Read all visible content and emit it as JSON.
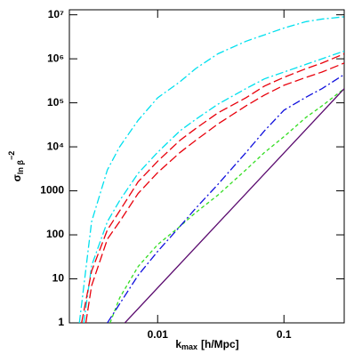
{
  "chart_data": {
    "type": "line",
    "log_x": true,
    "log_y": true,
    "xlim": [
      0.002,
      0.3
    ],
    "ylim": [
      1,
      13000000
    ],
    "xticks": [
      0.01,
      0.1
    ],
    "yticks": [
      1,
      10,
      100,
      1000,
      {
        "value": 10000,
        "label": "10⁴"
      },
      {
        "value": 100000,
        "label": "10⁵"
      },
      {
        "value": 1000000,
        "label": "10⁶"
      },
      {
        "value": 10000000,
        "label": "10⁷"
      }
    ],
    "x_label": {
      "symbol": "k",
      "sub": "max",
      "rest": "[h/Mpc]"
    },
    "y_label": {
      "symbol": "σ",
      "sub": "ln β",
      "sup": "−2"
    },
    "series": [
      {
        "color": "#00e0ee",
        "dash": "dash-dot",
        "x": [
          0.0024,
          0.003,
          0.004,
          0.005,
          0.007,
          0.01,
          0.015,
          0.02,
          0.03,
          0.05,
          0.07,
          0.1,
          0.15,
          0.2,
          0.3
        ],
        "values": [
          1,
          200,
          3000,
          10000,
          40000,
          130000,
          300000,
          600000,
          1300000,
          2500000,
          3500000,
          5000000,
          7000000,
          8000000,
          9000000
        ]
      },
      {
        "color": "#00e0ee",
        "dash": "dash-dot",
        "x": [
          0.0026,
          0.003,
          0.004,
          0.005,
          0.007,
          0.01,
          0.015,
          0.02,
          0.03,
          0.05,
          0.07,
          0.1,
          0.15,
          0.2,
          0.3
        ],
        "values": [
          1,
          20,
          200,
          600,
          2500,
          7500,
          23000,
          42000,
          93000,
          210000,
          350000,
          500000,
          750000,
          1000000,
          1500000
        ]
      },
      {
        "color": "#e8000b",
        "dash": "long-dashed",
        "x": [
          0.0025,
          0.003,
          0.004,
          0.005,
          0.007,
          0.01,
          0.015,
          0.02,
          0.03,
          0.05,
          0.07,
          0.1,
          0.15,
          0.2,
          0.3
        ],
        "values": [
          1,
          15,
          130,
          350,
          1600,
          4700,
          14000,
          26000,
          59000,
          130000,
          240000,
          380000,
          600000,
          800000,
          1300000
        ]
      },
      {
        "color": "#e8000b",
        "dash": "long-dashed",
        "x": [
          0.0027,
          0.003,
          0.004,
          0.005,
          0.007,
          0.01,
          0.015,
          0.02,
          0.03,
          0.05,
          0.07,
          0.1,
          0.15,
          0.2,
          0.3
        ],
        "values": [
          1,
          7,
          80,
          200,
          870,
          2600,
          7400,
          14000,
          33000,
          85000,
          150000,
          250000,
          380000,
          500000,
          800000
        ]
      },
      {
        "color": "#33dd22",
        "dash": "dashed",
        "x": [
          0.0042,
          0.005,
          0.007,
          0.01,
          0.015,
          0.02,
          0.03,
          0.05,
          0.07,
          0.1,
          0.15,
          0.2,
          0.3
        ],
        "values": [
          1,
          3.7,
          19,
          60,
          155,
          320,
          800,
          3000,
          7400,
          17000,
          47000,
          85000,
          210000
        ]
      },
      {
        "color": "#1010dd",
        "dash": "dash-dot",
        "x": [
          0.004,
          0.005,
          0.007,
          0.01,
          0.015,
          0.02,
          0.03,
          0.05,
          0.07,
          0.1,
          0.15,
          0.2,
          0.3
        ],
        "values": [
          1,
          2.7,
          12,
          42,
          155,
          400,
          1400,
          7400,
          23000,
          68000,
          135000,
          210000,
          440000
        ]
      },
      {
        "color": "#5a0a6e",
        "dash": "solid",
        "x": [
          0.0055,
          0.3
        ],
        "values": [
          1,
          210000
        ]
      }
    ]
  }
}
